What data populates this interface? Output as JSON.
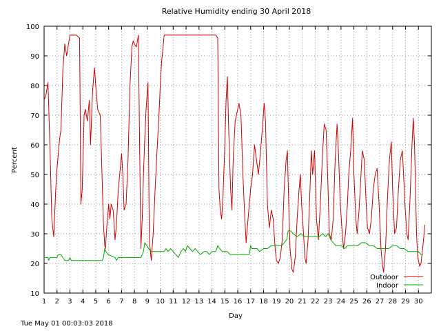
{
  "chart_data": {
    "type": "line",
    "title": "Relative Humidity ending 30 April 2018",
    "xlabel": "Day",
    "ylabel": "Percent",
    "xlim": [
      1,
      31
    ],
    "ylim": [
      10,
      100
    ],
    "x_ticks": [
      "1",
      "2",
      "3",
      "4",
      "5",
      "6",
      "7",
      "8",
      "9",
      "10",
      "11",
      "12",
      "13",
      "14",
      "15",
      "16",
      "17",
      "18",
      "19",
      "20",
      "21",
      "22",
      "23",
      "24",
      "25",
      "26",
      "27",
      "28",
      "29",
      "30"
    ],
    "y_ticks": [
      "10",
      "20",
      "30",
      "40",
      "50",
      "60",
      "70",
      "80",
      "90",
      "100"
    ],
    "grid": true,
    "legend_position": "bottom-right",
    "series": [
      {
        "name": "Outdoor",
        "color": "#cc0000",
        "points": [
          [
            1.0,
            75
          ],
          [
            1.15,
            77
          ],
          [
            1.3,
            81
          ],
          [
            1.45,
            60
          ],
          [
            1.6,
            35
          ],
          [
            1.75,
            29
          ],
          [
            1.9,
            45
          ],
          [
            2.0,
            52
          ],
          [
            2.1,
            57
          ],
          [
            2.2,
            62
          ],
          [
            2.3,
            65
          ],
          [
            2.45,
            85
          ],
          [
            2.6,
            94
          ],
          [
            2.75,
            90
          ],
          [
            2.85,
            93
          ],
          [
            3.0,
            97
          ],
          [
            3.2,
            97
          ],
          [
            3.5,
            97
          ],
          [
            3.75,
            96
          ],
          [
            3.85,
            40
          ],
          [
            3.95,
            45
          ],
          [
            4.1,
            70
          ],
          [
            4.2,
            72
          ],
          [
            4.35,
            68
          ],
          [
            4.5,
            75
          ],
          [
            4.6,
            60
          ],
          [
            4.75,
            78
          ],
          [
            4.9,
            86
          ],
          [
            5.0,
            80
          ],
          [
            5.15,
            72
          ],
          [
            5.35,
            70
          ],
          [
            5.5,
            48
          ],
          [
            5.6,
            33
          ],
          [
            5.7,
            26
          ],
          [
            5.75,
            25
          ],
          [
            5.85,
            32
          ],
          [
            6.0,
            40
          ],
          [
            6.1,
            35
          ],
          [
            6.2,
            40
          ],
          [
            6.35,
            38
          ],
          [
            6.5,
            28
          ],
          [
            6.6,
            33
          ],
          [
            6.75,
            45
          ],
          [
            6.9,
            52
          ],
          [
            7.0,
            57
          ],
          [
            7.1,
            50
          ],
          [
            7.2,
            38
          ],
          [
            7.35,
            40
          ],
          [
            7.5,
            55
          ],
          [
            7.65,
            80
          ],
          [
            7.8,
            93
          ],
          [
            7.9,
            95
          ],
          [
            8.0,
            94
          ],
          [
            8.15,
            93
          ],
          [
            8.3,
            97
          ],
          [
            8.4,
            60
          ],
          [
            8.5,
            25
          ],
          [
            8.6,
            35
          ],
          [
            8.7,
            50
          ],
          [
            8.8,
            62
          ],
          [
            8.9,
            72
          ],
          [
            9.05,
            81
          ],
          [
            9.15,
            28
          ],
          [
            9.3,
            21
          ],
          [
            9.45,
            30
          ],
          [
            9.6,
            45
          ],
          [
            9.75,
            58
          ],
          [
            9.9,
            70
          ],
          [
            10.0,
            80
          ],
          [
            10.1,
            88
          ],
          [
            10.2,
            92
          ],
          [
            10.3,
            97
          ],
          [
            10.6,
            97
          ],
          [
            11,
            97
          ],
          [
            11.5,
            97
          ],
          [
            12,
            97
          ],
          [
            12.5,
            97
          ],
          [
            13,
            97
          ],
          [
            13.5,
            97
          ],
          [
            14,
            97
          ],
          [
            14.3,
            97
          ],
          [
            14.45,
            96
          ],
          [
            14.55,
            45
          ],
          [
            14.65,
            38
          ],
          [
            14.75,
            35
          ],
          [
            14.85,
            42
          ],
          [
            15.0,
            60
          ],
          [
            15.1,
            75
          ],
          [
            15.2,
            83
          ],
          [
            15.3,
            65
          ],
          [
            15.45,
            45
          ],
          [
            15.55,
            38
          ],
          [
            15.65,
            55
          ],
          [
            15.8,
            68
          ],
          [
            16.0,
            72
          ],
          [
            16.1,
            74
          ],
          [
            16.25,
            70
          ],
          [
            16.4,
            50
          ],
          [
            16.55,
            35
          ],
          [
            16.65,
            27
          ],
          [
            16.8,
            35
          ],
          [
            17.0,
            45
          ],
          [
            17.15,
            50
          ],
          [
            17.3,
            60
          ],
          [
            17.45,
            55
          ],
          [
            17.6,
            50
          ],
          [
            17.75,
            57
          ],
          [
            17.9,
            65
          ],
          [
            18.05,
            74
          ],
          [
            18.15,
            68
          ],
          [
            18.3,
            40
          ],
          [
            18.45,
            32
          ],
          [
            18.6,
            38
          ],
          [
            18.75,
            35
          ],
          [
            18.9,
            25
          ],
          [
            19.0,
            21
          ],
          [
            19.15,
            20
          ],
          [
            19.3,
            22
          ],
          [
            19.45,
            28
          ],
          [
            19.6,
            45
          ],
          [
            19.75,
            55
          ],
          [
            19.85,
            58
          ],
          [
            19.95,
            40
          ],
          [
            20.05,
            25
          ],
          [
            20.2,
            18
          ],
          [
            20.3,
            17
          ],
          [
            20.45,
            22
          ],
          [
            20.6,
            35
          ],
          [
            20.75,
            45
          ],
          [
            20.85,
            50
          ],
          [
            20.95,
            40
          ],
          [
            21.1,
            30
          ],
          [
            21.2,
            22
          ],
          [
            21.3,
            20
          ],
          [
            21.45,
            28
          ],
          [
            21.6,
            45
          ],
          [
            21.7,
            58
          ],
          [
            21.8,
            50
          ],
          [
            21.95,
            58
          ],
          [
            22.1,
            35
          ],
          [
            22.25,
            28
          ],
          [
            22.4,
            40
          ],
          [
            22.55,
            55
          ],
          [
            22.7,
            67
          ],
          [
            22.85,
            65
          ],
          [
            23.0,
            45
          ],
          [
            23.1,
            30
          ],
          [
            23.25,
            28
          ],
          [
            23.4,
            35
          ],
          [
            23.55,
            55
          ],
          [
            23.7,
            67
          ],
          [
            23.8,
            58
          ],
          [
            23.95,
            40
          ],
          [
            24.1,
            30
          ],
          [
            24.2,
            25
          ],
          [
            24.35,
            30
          ],
          [
            24.5,
            40
          ],
          [
            24.6,
            50
          ],
          [
            24.75,
            58
          ],
          [
            24.9,
            69
          ],
          [
            25.0,
            50
          ],
          [
            25.15,
            35
          ],
          [
            25.25,
            30
          ],
          [
            25.4,
            38
          ],
          [
            25.55,
            50
          ],
          [
            25.65,
            58
          ],
          [
            25.8,
            55
          ],
          [
            25.95,
            40
          ],
          [
            26.05,
            32
          ],
          [
            26.2,
            30
          ],
          [
            26.35,
            35
          ],
          [
            26.5,
            45
          ],
          [
            26.65,
            50
          ],
          [
            26.8,
            52
          ],
          [
            26.95,
            40
          ],
          [
            27.1,
            25
          ],
          [
            27.2,
            20
          ],
          [
            27.3,
            17
          ],
          [
            27.45,
            25
          ],
          [
            27.6,
            42
          ],
          [
            27.75,
            55
          ],
          [
            27.9,
            61
          ],
          [
            28.0,
            45
          ],
          [
            28.15,
            30
          ],
          [
            28.3,
            32
          ],
          [
            28.45,
            45
          ],
          [
            28.6,
            55
          ],
          [
            28.75,
            58
          ],
          [
            28.85,
            50
          ],
          [
            28.95,
            40
          ],
          [
            29.1,
            30
          ],
          [
            29.2,
            28
          ],
          [
            29.35,
            42
          ],
          [
            29.5,
            60
          ],
          [
            29.6,
            69
          ],
          [
            29.7,
            60
          ],
          [
            29.85,
            30
          ],
          [
            29.95,
            22
          ],
          [
            30.1,
            19
          ],
          [
            30.2,
            20
          ],
          [
            30.35,
            26
          ],
          [
            30.5,
            33
          ]
        ]
      },
      {
        "name": "Indoor",
        "color": "#00aa00",
        "points": [
          [
            1.0,
            22
          ],
          [
            1.3,
            22
          ],
          [
            1.35,
            21
          ],
          [
            1.45,
            22
          ],
          [
            2.0,
            22
          ],
          [
            2.1,
            23
          ],
          [
            2.3,
            23
          ],
          [
            2.45,
            22
          ],
          [
            2.6,
            21
          ],
          [
            2.9,
            21
          ],
          [
            3.0,
            22
          ],
          [
            3.1,
            21
          ],
          [
            3.5,
            21
          ],
          [
            4.0,
            21
          ],
          [
            4.5,
            21
          ],
          [
            5.0,
            21
          ],
          [
            5.5,
            21
          ],
          [
            5.6,
            22
          ],
          [
            5.7,
            25
          ],
          [
            5.8,
            24
          ],
          [
            5.95,
            23
          ],
          [
            6.5,
            22
          ],
          [
            6.6,
            21
          ],
          [
            6.75,
            22
          ],
          [
            7.0,
            22
          ],
          [
            7.5,
            22
          ],
          [
            8.0,
            22
          ],
          [
            8.5,
            22
          ],
          [
            8.7,
            24
          ],
          [
            8.8,
            27
          ],
          [
            8.95,
            26
          ],
          [
            9.1,
            25
          ],
          [
            9.3,
            24
          ],
          [
            9.6,
            24
          ],
          [
            10.0,
            24
          ],
          [
            10.3,
            24
          ],
          [
            10.45,
            25
          ],
          [
            10.6,
            24
          ],
          [
            10.8,
            25
          ],
          [
            11.0,
            24
          ],
          [
            11.2,
            23
          ],
          [
            11.4,
            22
          ],
          [
            11.6,
            24
          ],
          [
            11.8,
            25
          ],
          [
            11.95,
            24
          ],
          [
            12.1,
            26
          ],
          [
            12.3,
            25
          ],
          [
            12.5,
            24
          ],
          [
            12.7,
            25
          ],
          [
            12.9,
            24
          ],
          [
            13.1,
            23
          ],
          [
            13.4,
            24
          ],
          [
            13.6,
            24
          ],
          [
            13.8,
            23
          ],
          [
            14.0,
            24
          ],
          [
            14.3,
            24
          ],
          [
            14.45,
            26
          ],
          [
            14.6,
            25
          ],
          [
            14.8,
            24
          ],
          [
            15.0,
            24
          ],
          [
            15.2,
            24
          ],
          [
            15.4,
            23
          ],
          [
            15.8,
            23
          ],
          [
            16.2,
            23
          ],
          [
            16.5,
            23
          ],
          [
            16.9,
            23
          ],
          [
            17.0,
            26
          ],
          [
            17.1,
            25
          ],
          [
            17.5,
            25
          ],
          [
            17.7,
            24
          ],
          [
            18.0,
            25
          ],
          [
            18.3,
            25
          ],
          [
            18.6,
            26
          ],
          [
            19.0,
            26
          ],
          [
            19.4,
            26
          ],
          [
            19.6,
            27
          ],
          [
            19.8,
            28
          ],
          [
            19.9,
            31
          ],
          [
            20.1,
            31
          ],
          [
            20.3,
            30
          ],
          [
            20.6,
            29
          ],
          [
            20.9,
            30
          ],
          [
            21.2,
            29
          ],
          [
            21.5,
            29
          ],
          [
            21.8,
            29
          ],
          [
            22.0,
            29
          ],
          [
            22.3,
            29
          ],
          [
            22.6,
            30
          ],
          [
            22.8,
            29
          ],
          [
            23.0,
            30
          ],
          [
            23.2,
            28
          ],
          [
            23.4,
            27
          ],
          [
            23.6,
            26
          ],
          [
            24.0,
            26
          ],
          [
            24.3,
            25
          ],
          [
            24.5,
            26
          ],
          [
            24.8,
            26
          ],
          [
            25.0,
            26
          ],
          [
            25.3,
            26
          ],
          [
            25.6,
            27
          ],
          [
            25.9,
            27
          ],
          [
            26.2,
            26
          ],
          [
            26.5,
            26
          ],
          [
            26.8,
            25
          ],
          [
            27.1,
            25
          ],
          [
            27.4,
            25
          ],
          [
            27.7,
            25
          ],
          [
            28.0,
            26
          ],
          [
            28.3,
            26
          ],
          [
            28.6,
            25
          ],
          [
            28.9,
            25
          ],
          [
            29.2,
            24
          ],
          [
            29.5,
            24
          ],
          [
            29.8,
            24
          ],
          [
            30.0,
            24
          ],
          [
            30.2,
            23
          ],
          [
            30.35,
            23
          ]
        ]
      }
    ]
  },
  "footer": {
    "timestamp": "Tue May 01 00:03:03 2018"
  }
}
